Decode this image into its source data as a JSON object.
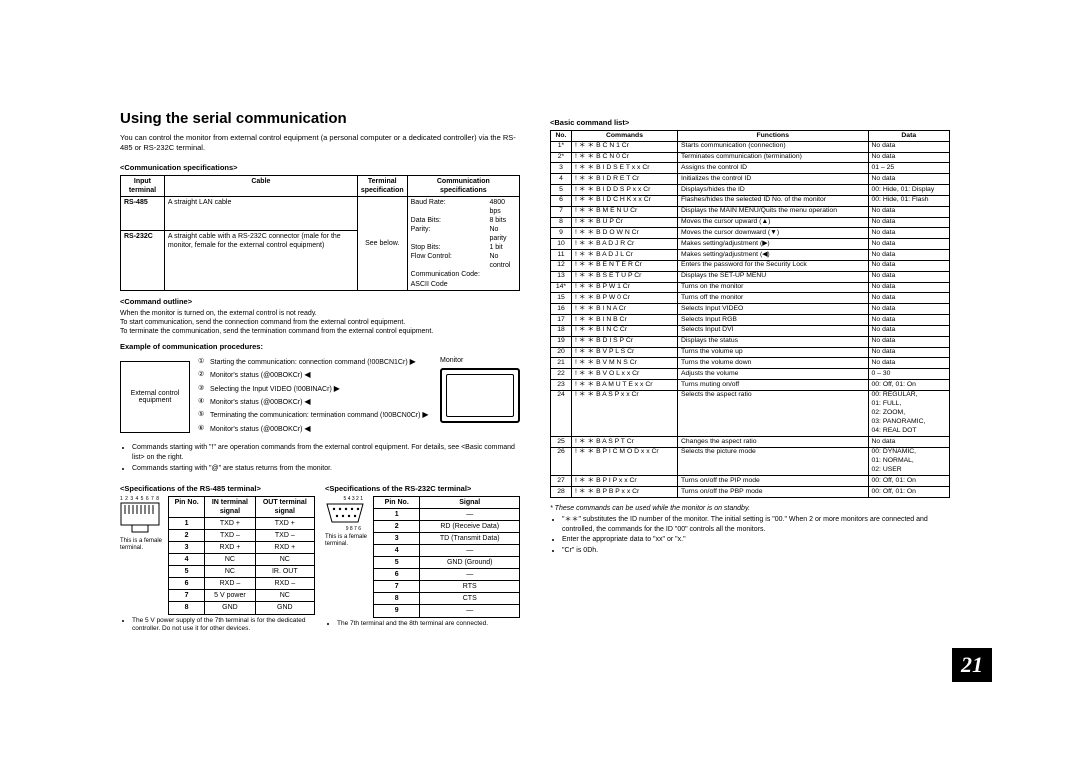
{
  "page_number": "21",
  "title": "Using the serial communication",
  "intro": "You can control the monitor from external control equipment (a personal computer or a dedicated controller) via the RS-485 or RS-232C terminal.",
  "comm_spec_label": "<Communication specifications>",
  "comm_spec": {
    "headers": [
      "Input terminal",
      "Cable",
      "Terminal specification",
      "Communication specifications"
    ],
    "row_rs485": {
      "term": "RS-485",
      "cable": "A straight LAN cable"
    },
    "row_rs232": {
      "term": "RS-232C",
      "cable": "A straight cable with a RS-232C connector (male for the monitor, female for the external control equipment)"
    },
    "term_spec": "See below.",
    "specs": [
      [
        "Baud Rate:",
        "4800 bps"
      ],
      [
        "Data Bits:",
        "8 bits"
      ],
      [
        "Parity:",
        "No parity"
      ],
      [
        "Stop Bits:",
        "1 bit"
      ],
      [
        "Flow Control:",
        "No control"
      ],
      [
        "Communication Code: ASCII Code",
        ""
      ]
    ]
  },
  "cmd_outline_label": "<Command outline>",
  "cmd_outline": [
    "When the monitor is turned on, the external control is not ready.",
    "To start communication, send the connection command from the external control equipment.",
    "To terminate the communication, send the termination command from the external control equipment."
  ],
  "example_label": "Example of communication procedures:",
  "ext_box": "External control equipment",
  "monitor_label": "Monitor",
  "procedures": [
    {
      "n": "①",
      "text": "Starting the communication: connection command (!00BCN1Cr)"
    },
    {
      "n": "②",
      "text": "Monitor's status (@00BOKCr)"
    },
    {
      "n": "③",
      "text": "Selecting the Input VIDEO (!00BINACr)"
    },
    {
      "n": "④",
      "text": "Monitor's status (@00BOKCr)"
    },
    {
      "n": "⑤",
      "text": "Terminating the communication: termination command (!00BCN0Cr)"
    },
    {
      "n": "⑥",
      "text": "Monitor's status (@00BOKCr)"
    }
  ],
  "cmd_notes": [
    "Commands starting with \"!\" are operation commands from the external control equipment. For details, see <Basic command list> on the right.",
    "Commands starting with \"@\" are status returns from the monitor."
  ],
  "rs485_label": "<Specifications of the RS-485 terminal>",
  "rs232_label": "<Specifications of the RS-232C terminal>",
  "rs485_table": {
    "headers": [
      "Pin No.",
      "IN terminal signal",
      "OUT terminal signal"
    ],
    "rows": [
      [
        "1",
        "TXD +",
        "TXD +"
      ],
      [
        "2",
        "TXD –",
        "TXD –"
      ],
      [
        "3",
        "RXD +",
        "RXD +"
      ],
      [
        "4",
        "NC",
        "NC"
      ],
      [
        "5",
        "NC",
        "IR. OUT"
      ],
      [
        "6",
        "RXD –",
        "RXD –"
      ],
      [
        "7",
        "5 V power",
        "NC"
      ],
      [
        "8",
        "GND",
        "GND"
      ]
    ]
  },
  "rs232_table": {
    "headers": [
      "Pin No.",
      "Signal"
    ],
    "rows": [
      [
        "1",
        "—"
      ],
      [
        "2",
        "RD (Receive Data)"
      ],
      [
        "3",
        "TD (Transmit Data)"
      ],
      [
        "4",
        "—"
      ],
      [
        "5",
        "GND (Ground)"
      ],
      [
        "6",
        "—"
      ],
      [
        "7",
        "RTS"
      ],
      [
        "8",
        "CTS"
      ],
      [
        "9",
        "—"
      ]
    ]
  },
  "rj45_pins": "1 2 3 4 5 6 7 8",
  "db9_top": "5 4 3 2 1",
  "db9_bot": "9 8 7 6",
  "term_female": "This is a female terminal.",
  "rs485_footnote": "The 5 V power supply of the 7th terminal is for the dedicated controller. Do not use it for other devices.",
  "rs232_footnote": "The 7th terminal and the 8th terminal are connected.",
  "basic_cmd_label": "<Basic command list>",
  "cmd_headers": [
    "No.",
    "Commands",
    "Functions",
    "Data"
  ],
  "cmd_rows": [
    [
      "1*",
      "!  ＊  ＊  B  C  N  1  Cr",
      "Starts communication (connection)",
      "No data"
    ],
    [
      "2*",
      "!  ＊  ＊  B  C  N  0  Cr",
      "Terminates communication (termination)",
      "No data"
    ],
    [
      "3",
      "!  ＊  ＊  B  I  D  S  E  T  x  x  Cr",
      "Assigns the control ID",
      "01 – 25"
    ],
    [
      "4",
      "!  ＊  ＊  B  I  D  R  E  T  Cr",
      "Initializes the control ID",
      "No data"
    ],
    [
      "5",
      "!  ＊  ＊  B  I  D  D  S  P  x  x  Cr",
      "Displays/hides the ID",
      "00: Hide, 01: Display"
    ],
    [
      "6",
      "!  ＊  ＊  B  I  D  C  H  K  x  x  Cr",
      "Flashes/hides the selected ID No. of the monitor",
      "00: Hide, 01: Flash"
    ],
    [
      "7",
      "!  ＊  ＊  B  M  E  N  U  Cr",
      "Displays the MAIN MENU/Quits the menu operation",
      "No data"
    ],
    [
      "8",
      "!  ＊  ＊  B  U  P  Cr",
      "Moves the cursor upward (▲)",
      "No data"
    ],
    [
      "9",
      "!  ＊  ＊  B  D  O  W  N  Cr",
      "Moves the cursor downward (▼)",
      "No data"
    ],
    [
      "10",
      "!  ＊  ＊  B  A  D  J  R  Cr",
      "Makes setting/adjustment (▶)",
      "No data"
    ],
    [
      "11",
      "!  ＊  ＊  B  A  D  J  L  Cr",
      "Makes setting/adjustment (◀)",
      "No data"
    ],
    [
      "12",
      "!  ＊  ＊  B  E  N  T  E  R  Cr",
      "Enters the password for the Security Lock",
      "No data"
    ],
    [
      "13",
      "!  ＊  ＊  B  S  E  T  U  P  Cr",
      "Displays the SET-UP MENU",
      "No data"
    ],
    [
      "14*",
      "!  ＊  ＊  B  P  W  1  Cr",
      "Turns on the monitor",
      "No data"
    ],
    [
      "15",
      "!  ＊  ＊  B  P  W  0  Cr",
      "Turns off the monitor",
      "No data"
    ],
    [
      "16",
      "!  ＊  ＊  B  I  N  A  Cr",
      "Selects Input VIDEO",
      "No data"
    ],
    [
      "17",
      "!  ＊  ＊  B  I  N  B  Cr",
      "Selects Input RGB",
      "No data"
    ],
    [
      "18",
      "!  ＊  ＊  B  I  N  C  Cr",
      "Selects Input DVI",
      "No data"
    ],
    [
      "19",
      "!  ＊  ＊  B  D  I  S  P  Cr",
      "Displays the status",
      "No data"
    ],
    [
      "20",
      "!  ＊  ＊  B  V  P  L  S  Cr",
      "Turns the volume up",
      "No data"
    ],
    [
      "21",
      "!  ＊  ＊  B  V  M  N  S  Cr",
      "Turns the volume down",
      "No data"
    ],
    [
      "22",
      "!  ＊  ＊  B  V  O  L  x  x  Cr",
      "Adjusts the volume",
      "0 – 30"
    ],
    [
      "23",
      "!  ＊  ＊  B  A  M  U  T  E  x  x  Cr",
      "Turns muting on/off",
      "00: Off, 01: On"
    ],
    [
      "24",
      "!  ＊  ＊  B  A  S  P  x  x  Cr",
      "Selects the aspect ratio",
      "00: REGULAR,\n01: FULL,\n02: ZOOM,\n03: PANORAMIC,\n04: REAL DOT"
    ],
    [
      "25",
      "!  ＊  ＊  B  A  S  P  T  Cr",
      "Changes the aspect ratio",
      "No data"
    ],
    [
      "26",
      "!  ＊  ＊  B  P  I  C  M  O  D  x  x  Cr",
      "Selects the picture mode",
      "00: DYNAMIC,\n01: NORMAL,\n02: USER"
    ],
    [
      "27",
      "!  ＊  ＊  B  P  I  P  x  x  Cr",
      "Turns on/off the PIP mode",
      "00: Off, 01: On"
    ],
    [
      "28",
      "!  ＊  ＊  B  P  B  P  x  x  Cr",
      "Turns on/off the PBP mode",
      "00: Off, 01: On"
    ]
  ],
  "right_notes": {
    "star": "These commands can be used while the monitor is on standby.",
    "bullets": [
      "\"＊＊\" substitutes the ID number of the monitor. The initial setting is \"00.\" When 2 or more monitors are connected and controlled, the commands for the ID \"00\" controls all the monitors.",
      "Enter the appropriate data to \"xx\" or \"x.\"",
      "\"Cr\" is 0Dh."
    ]
  }
}
